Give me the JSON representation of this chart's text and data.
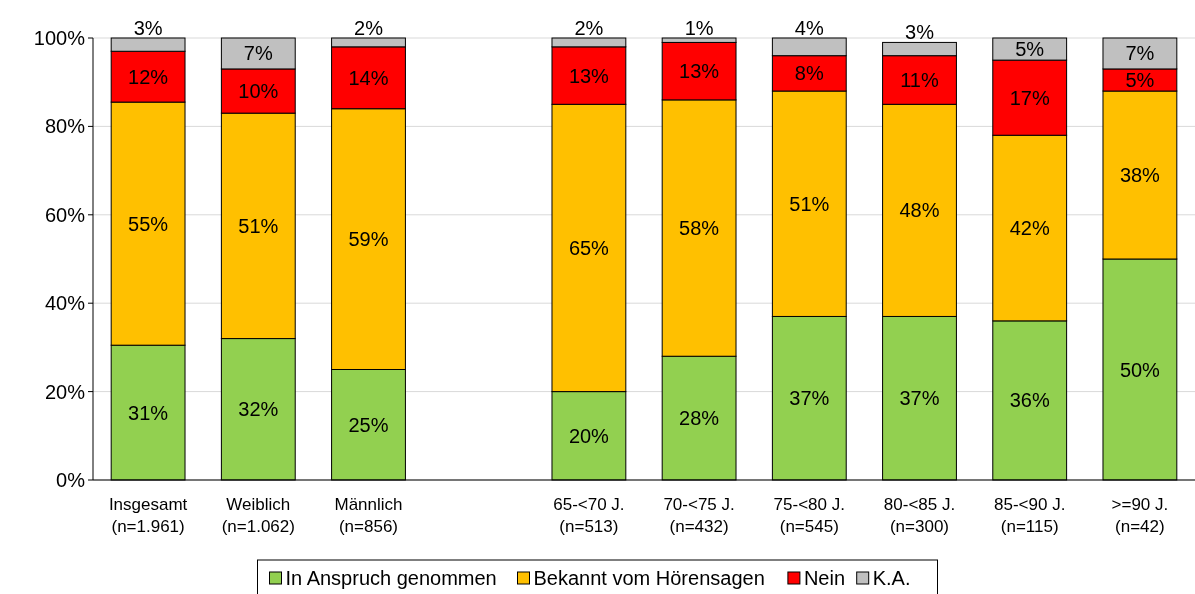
{
  "chart_data": {
    "type": "bar",
    "stacked": true,
    "categories": [
      "Insgesamt\n(n=1.961)",
      "Weiblich\n(n=1.062)",
      "Männlich\n(n=856)",
      null,
      "65-<70 J.\n(n=513)",
      "70-<75 J.\n(n=432)",
      "75-<80 J.\n(n=545)",
      "80-<85 J.\n(n=300)",
      "85-<90 J.\n(n=115)",
      ">=90 J.\n(n=42)"
    ],
    "series": [
      {
        "name": "In Anspruch genommen",
        "color": "#92d050",
        "values": [
          30.5,
          32,
          25,
          null,
          20,
          28,
          37,
          37,
          36,
          50
        ],
        "value_labels": [
          "31%",
          "32%",
          "25%",
          null,
          "20%",
          "28%",
          "37%",
          "37%",
          "36%",
          "50%"
        ]
      },
      {
        "name": "Bekannt vom Hörensagen",
        "color": "#ffc000",
        "values": [
          55,
          51,
          59,
          null,
          65,
          58,
          51,
          48,
          42,
          38
        ],
        "value_labels": [
          "55%",
          "51%",
          "59%",
          null,
          "65%",
          "58%",
          "51%",
          "48%",
          "42%",
          "38%"
        ]
      },
      {
        "name": "Nein",
        "color": "#ff0000",
        "values": [
          11.5,
          10,
          14,
          null,
          13,
          13,
          8,
          11,
          17,
          5
        ],
        "value_labels": [
          "12%",
          "10%",
          "14%",
          null,
          "13%",
          "13%",
          "8%",
          "11%",
          "17%",
          "5%"
        ]
      },
      {
        "name": "K.A.",
        "color": "#c0c0c0",
        "values": [
          3,
          7,
          2,
          null,
          2,
          1,
          4,
          3,
          5,
          7
        ],
        "value_labels": [
          "3%",
          "7%",
          "2%",
          null,
          "2%",
          "1%",
          "4%",
          "3%",
          "5%",
          "7%"
        ]
      }
    ],
    "ylim": [
      0,
      100
    ],
    "yticks": [
      {
        "value": 0,
        "label": "0%"
      },
      {
        "value": 20,
        "label": "20%"
      },
      {
        "value": 40,
        "label": "40%"
      },
      {
        "value": 60,
        "label": "60%"
      },
      {
        "value": 80,
        "label": "80%"
      },
      {
        "value": 100,
        "label": "100%"
      }
    ],
    "grid": "y",
    "legend": "bottom"
  }
}
